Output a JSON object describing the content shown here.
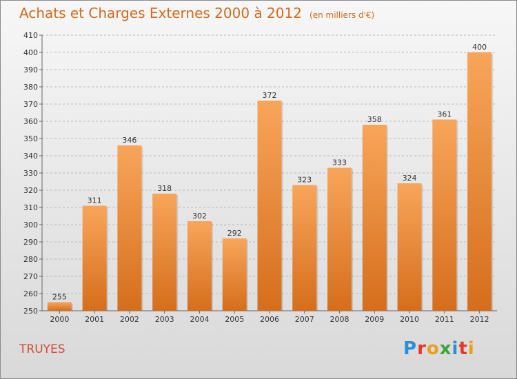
{
  "header": {
    "title": "Achats et Charges Externes 2000 à 2012",
    "unit": "(en milliers d'€)"
  },
  "footer": {
    "place": "TRUYES",
    "logo_letters": [
      "P",
      "r",
      "o",
      "x",
      "i",
      "t",
      "i"
    ],
    "logo_colors": [
      "#2a8fd6",
      "#e03a2a",
      "#e8a020",
      "#38a838",
      "#2a8fd6",
      "#e03a2a",
      "#e8a020"
    ]
  },
  "colors": {
    "bar_top": "#f8a55a",
    "bar_bottom": "#d56e1c",
    "accent": "#d2691e"
  },
  "chart_data": {
    "type": "bar",
    "title": "Achats et Charges Externes 2000 à 2012",
    "subtitle": "(en milliers d'€)",
    "categories": [
      "2000",
      "2001",
      "2002",
      "2003",
      "2004",
      "2005",
      "2006",
      "2007",
      "2008",
      "2009",
      "2010",
      "2011",
      "2012"
    ],
    "values": [
      255,
      311,
      346,
      318,
      302,
      292,
      372,
      323,
      333,
      358,
      324,
      361,
      400
    ],
    "ylim": [
      250,
      410
    ],
    "yticks": [
      250,
      260,
      270,
      280,
      290,
      300,
      310,
      320,
      330,
      340,
      350,
      360,
      370,
      380,
      390,
      400,
      410
    ],
    "grid": true,
    "data_labels": true
  }
}
